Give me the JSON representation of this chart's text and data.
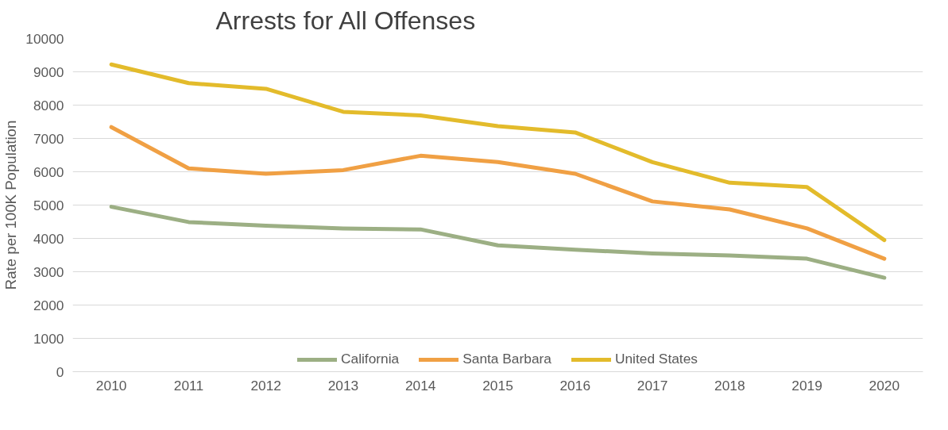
{
  "chart_data": {
    "type": "line",
    "title": "Arrests for All Offenses",
    "ylabel": "Rate per 100K Population",
    "categories": [
      "2010",
      "2011",
      "2012",
      "2013",
      "2014",
      "2015",
      "2016",
      "2017",
      "2018",
      "2019",
      "2020"
    ],
    "series": [
      {
        "name": "California",
        "color": "#9caf84",
        "values": [
          4950,
          4490,
          4380,
          4300,
          4270,
          3790,
          3660,
          3550,
          3490,
          3390,
          2820
        ]
      },
      {
        "name": "Santa Barbara",
        "color": "#f0a044",
        "values": [
          7340,
          6100,
          5940,
          6050,
          6480,
          6290,
          5940,
          5110,
          4870,
          4300,
          3390
        ]
      },
      {
        "name": "United States",
        "color": "#e3bb2b",
        "values": [
          9220,
          8660,
          8490,
          7800,
          7690,
          7370,
          7180,
          6290,
          5670,
          5540,
          3950
        ]
      }
    ],
    "ylim": [
      0,
      10000
    ],
    "yticks": [
      0,
      1000,
      2000,
      3000,
      4000,
      5000,
      6000,
      7000,
      8000,
      9000,
      10000
    ],
    "grid": "y",
    "legend": "bottom",
    "marker": "none",
    "line_style": "solid"
  }
}
